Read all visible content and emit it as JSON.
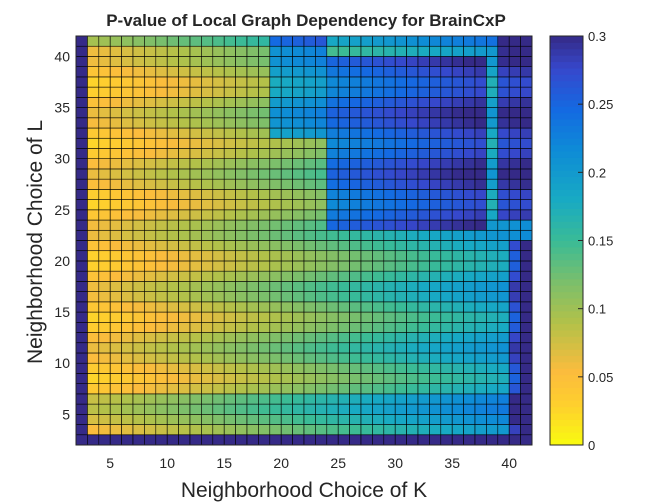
{
  "chart_data": {
    "type": "heatmap",
    "title": "P-value of Local Graph Dependency for BrainCxP",
    "xlabel": "Neighborhood Choice of K",
    "ylabel": "Neighborhood Choice of L",
    "x_range": [
      2,
      42
    ],
    "y_range": [
      2,
      42
    ],
    "x_ticks": [
      5,
      10,
      15,
      20,
      25,
      30,
      35,
      40
    ],
    "y_ticks": [
      5,
      10,
      15,
      20,
      25,
      30,
      35,
      40
    ],
    "colorbar": {
      "range": [
        0,
        0.3
      ],
      "ticks": [
        "0",
        "0.05",
        "0.1",
        "0.15",
        "0.2",
        "0.25",
        "0.3"
      ],
      "colormap": "parula"
    },
    "grid": "cell edges drawn (black)",
    "value_description": "P-value per (K, L) cell; low (yellow) for small K, high (dark blue) in upper-right region and along borders"
  }
}
